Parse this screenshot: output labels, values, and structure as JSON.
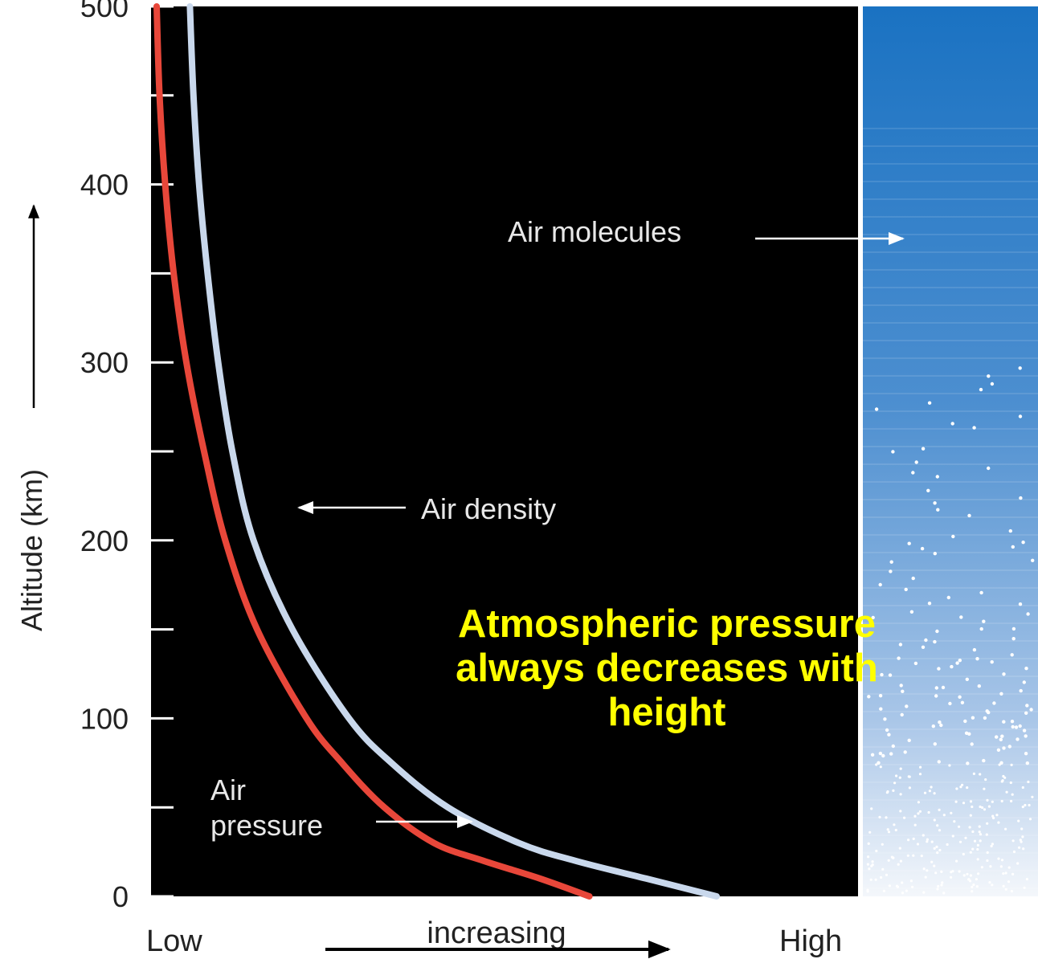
{
  "chart_data": {
    "type": "line",
    "ylabel": "Altitude (km)",
    "yticks": [
      0,
      100,
      200,
      300,
      400,
      500
    ],
    "ylim": [
      0,
      500
    ],
    "x_scale_labels": {
      "low": "Low",
      "high": "High"
    },
    "x_direction_label": "increasing",
    "series": [
      {
        "name": "Air pressure",
        "color": "#e8473a",
        "points": [
          [
            0,
            0.62
          ],
          [
            10,
            0.55
          ],
          [
            20,
            0.47
          ],
          [
            30,
            0.4
          ],
          [
            50,
            0.33
          ],
          [
            75,
            0.27
          ],
          [
            100,
            0.22
          ],
          [
            150,
            0.15
          ],
          [
            200,
            0.105
          ],
          [
            250,
            0.075
          ],
          [
            300,
            0.05
          ],
          [
            350,
            0.032
          ],
          [
            400,
            0.02
          ],
          [
            450,
            0.012
          ],
          [
            500,
            0.008
          ]
        ]
      },
      {
        "name": "Air density",
        "color": "#c9d8ec",
        "points": [
          [
            0,
            0.8
          ],
          [
            10,
            0.7
          ],
          [
            20,
            0.6
          ],
          [
            30,
            0.52
          ],
          [
            50,
            0.42
          ],
          [
            75,
            0.34
          ],
          [
            100,
            0.28
          ],
          [
            150,
            0.2
          ],
          [
            200,
            0.145
          ],
          [
            250,
            0.115
          ],
          [
            300,
            0.095
          ],
          [
            350,
            0.08
          ],
          [
            400,
            0.068
          ],
          [
            450,
            0.06
          ],
          [
            500,
            0.055
          ]
        ]
      }
    ],
    "annotations": {
      "air_density": "Air density",
      "air_pressure_line1": "Air",
      "air_pressure_line2": "pressure",
      "air_molecules": "Air molecules"
    },
    "caption": "Atmospheric pressure always decreases with height",
    "colors": {
      "plot_background": "#000000",
      "caption": "#ffff00",
      "panel_top": "#1a72c2",
      "panel_bottom": "#f4f7fb"
    }
  }
}
